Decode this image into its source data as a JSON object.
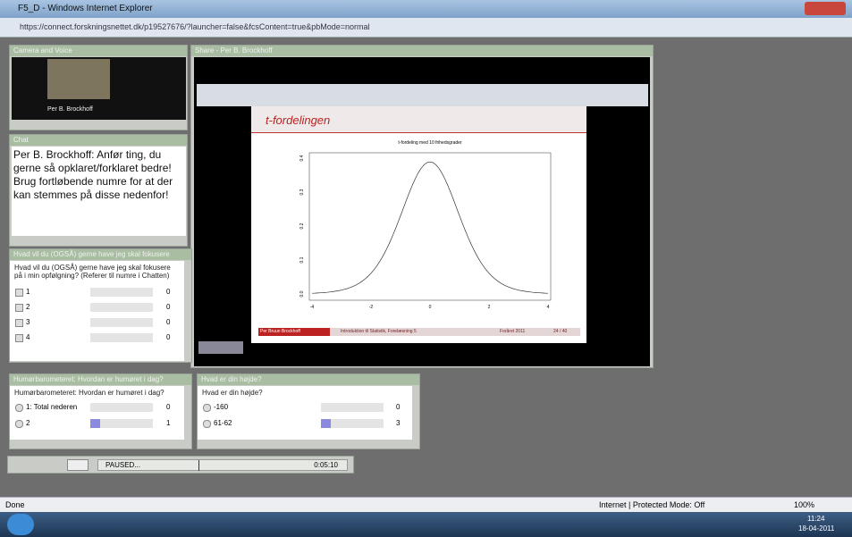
{
  "window": {
    "title": "F5_D - Windows Internet Explorer",
    "url": "https://connect.forskningsnettet.dk/p19527676/?launcher=false&fcsContent=true&pbMode=normal"
  },
  "pods": {
    "camera": {
      "title": "Camera and Voice",
      "name": "Per B. Brockhoff"
    },
    "chat": {
      "title": "Chat",
      "message": "Per B. Brockhoff:  Anfør ting, du gerne så opklaret/forklaret bedre! Brug fortløbende numre for at der kan stemmes på disse nedenfor!"
    },
    "share": {
      "title": "Share - Per B. Brockhoff",
      "slide": {
        "title": "t-fordelingen",
        "plot_title": "t-fordeling med 10 frihedsgrader",
        "xticks": [
          "-4",
          "-2",
          "0",
          "2",
          "4"
        ],
        "yticks": [
          "0.0",
          "0.1",
          "0.2",
          "0.3",
          "0.4"
        ],
        "footer": [
          "Per Bruun Brockhoff (pbb@imm.dtu.dk)",
          "Introduktion til Statistik, Forelæsning 5",
          "Foråret 2011",
          "24 / 40"
        ]
      }
    },
    "polls": [
      {
        "title": "Hvad vil du (OGSÅ) gerne have jeg skal fokusere",
        "question": "Hvad vil du (OGSÅ) gerne have jeg skal fokusere på i min opfølgning? (Referer til numre i Chatten)",
        "options": [
          {
            "label": "1",
            "count": 0
          },
          {
            "label": "2",
            "count": 0
          },
          {
            "label": "3",
            "count": 0
          },
          {
            "label": "4",
            "count": 0
          }
        ]
      },
      {
        "title": "Humørbarometeret: Hvordan er humøret i dag?",
        "question": "Humørbarometeret: Hvordan er humøret i dag?",
        "options": [
          {
            "label": "1: Total nederen",
            "count": 0
          },
          {
            "label": "2",
            "count": 1
          }
        ]
      },
      {
        "title": "Hvad er din højde?",
        "question": "Hvad er din højde?",
        "options": [
          {
            "label": "-160",
            "count": 0
          },
          {
            "label": "61-62",
            "count": 3
          }
        ]
      }
    ]
  },
  "playback": {
    "status": "PAUSED...",
    "time": "0:05:10"
  },
  "statusbar": {
    "left": "Done",
    "zone": "Internet | Protected Mode: Off",
    "zoom": "100%"
  },
  "taskbar": {
    "time": "11:24",
    "date": "18-04-2011"
  }
}
